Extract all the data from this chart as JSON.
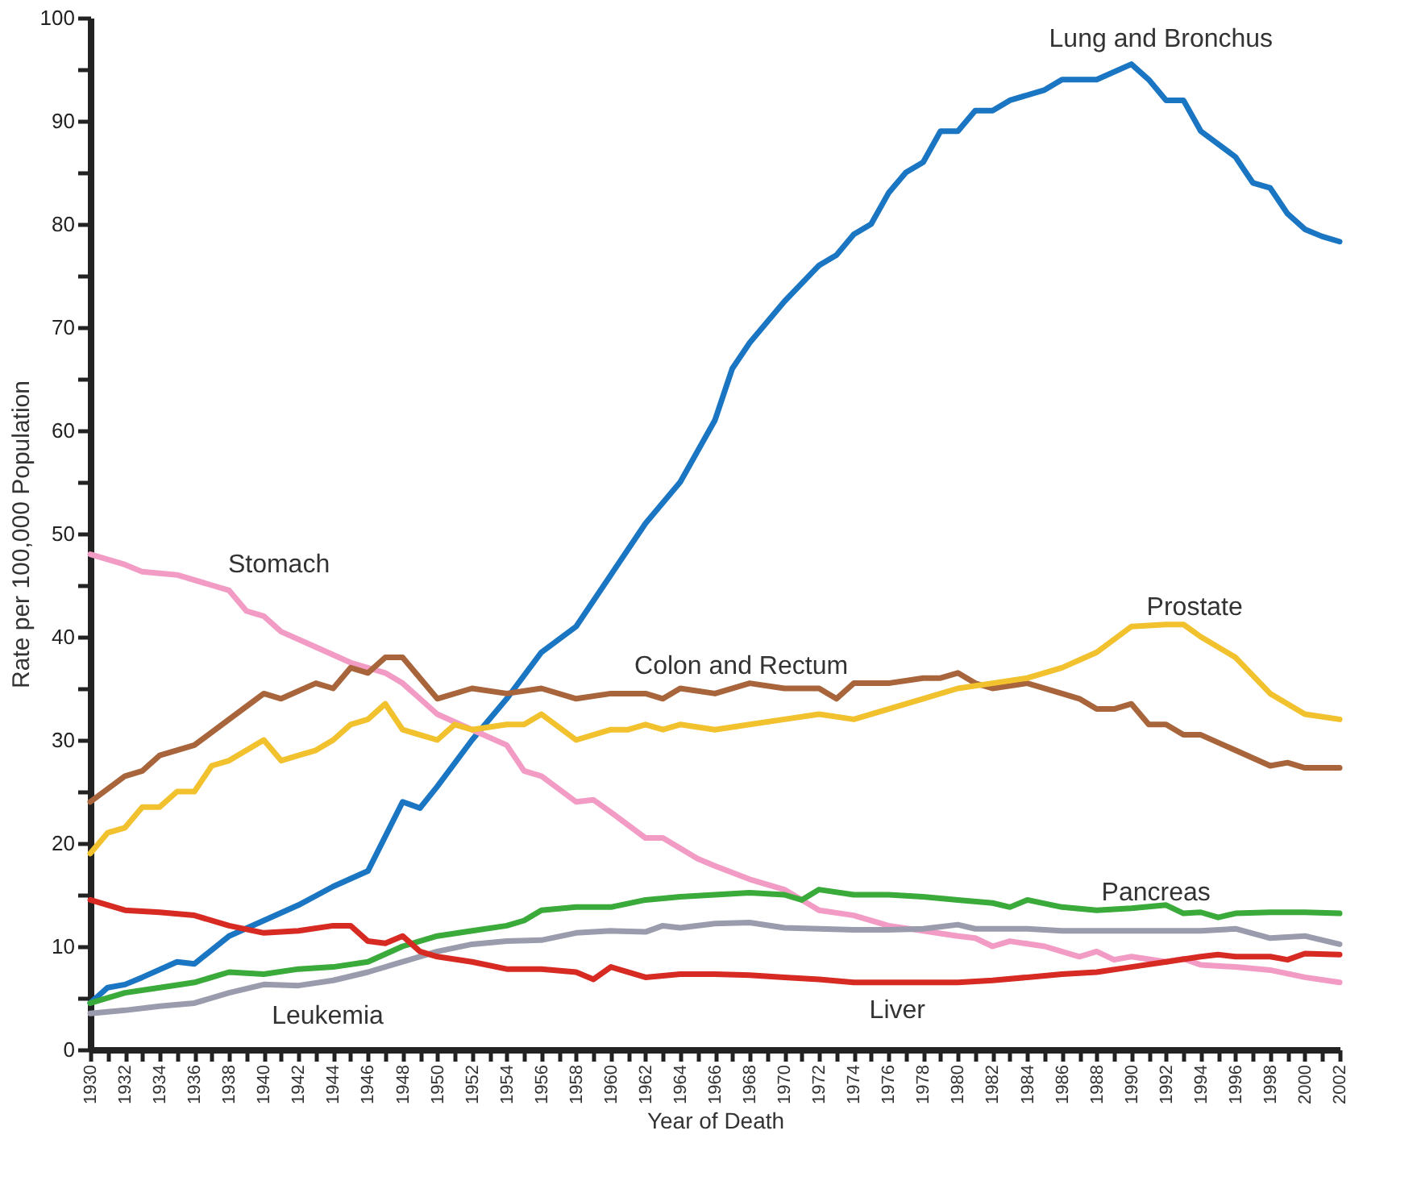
{
  "chart_data": {
    "type": "line",
    "xlabel": "Year of Death",
    "ylabel": "Rate per 100,000 Population",
    "xlim": [
      1930,
      2002
    ],
    "ylim": [
      0,
      100
    ],
    "xticks": [
      1930,
      {
        "value": 1931,
        "label": null
      },
      1932,
      {
        "value": 1933,
        "label": null
      },
      1934,
      {
        "value": 1935,
        "label": null
      },
      1936,
      {
        "value": 1937,
        "label": null
      },
      1938,
      {
        "value": 1939,
        "label": null
      },
      1940,
      {
        "value": 1941,
        "label": null
      },
      1942,
      {
        "value": 1943,
        "label": null
      },
      1944,
      {
        "value": 1945,
        "label": null
      },
      1946,
      {
        "value": 1947,
        "label": null
      },
      1948,
      {
        "value": 1949,
        "label": null
      },
      1950,
      {
        "value": 1951,
        "label": null
      },
      1952,
      {
        "value": 1953,
        "label": null
      },
      1954,
      {
        "value": 1955,
        "label": null
      },
      1956,
      {
        "value": 1957,
        "label": null
      },
      1958,
      {
        "value": 1959,
        "label": null
      },
      1960,
      {
        "value": 1961,
        "label": null
      },
      1962,
      {
        "value": 1963,
        "label": null
      },
      1964,
      {
        "value": 1965,
        "label": null
      },
      1966,
      {
        "value": 1967,
        "label": null
      },
      1968,
      {
        "value": 1969,
        "label": null
      },
      1970,
      {
        "value": 1971,
        "label": null
      },
      1972,
      {
        "value": 1973,
        "label": null
      },
      1974,
      {
        "value": 1975,
        "label": null
      },
      1976,
      {
        "value": 1977,
        "label": null
      },
      1978,
      {
        "value": 1979,
        "label": null
      },
      1980,
      {
        "value": 1981,
        "label": null
      },
      1982,
      {
        "value": 1983,
        "label": null
      },
      1984,
      {
        "value": 1985,
        "label": null
      },
      1986,
      {
        "value": 1987,
        "label": null
      },
      1988,
      {
        "value": 1989,
        "label": null
      },
      1990,
      {
        "value": 1991,
        "label": null
      },
      1992,
      {
        "value": 1993,
        "label": null
      },
      1994,
      {
        "value": 1995,
        "label": null
      },
      1996,
      {
        "value": 1997,
        "label": null
      },
      1998,
      {
        "value": 1999,
        "label": null
      },
      2000,
      {
        "value": 2001,
        "label": null
      },
      2002
    ],
    "yticks": [
      0,
      {
        "value": 5,
        "label": null
      },
      10,
      {
        "value": 15,
        "label": null
      },
      20,
      {
        "value": 25,
        "label": null
      },
      30,
      {
        "value": 35,
        "label": null
      },
      40,
      {
        "value": 45,
        "label": null
      },
      50,
      {
        "value": 55,
        "label": null
      },
      60,
      {
        "value": 65,
        "label": null
      },
      70,
      {
        "value": 75,
        "label": null
      },
      80,
      {
        "value": 85,
        "label": null
      },
      90,
      {
        "value": 95,
        "label": null
      },
      100
    ],
    "grid": false,
    "marker": "none",
    "line_style": "solid",
    "series": [
      {
        "name": "Lung and Bronchus",
        "color": "#1a75c2",
        "x": [
          1930,
          1931,
          1932,
          1933,
          1935,
          1936,
          1938,
          1940,
          1942,
          1944,
          1946,
          1948,
          1949,
          1950,
          1952,
          1954,
          1956,
          1958,
          1960,
          1962,
          1964,
          1966,
          1967,
          1968,
          1970,
          1972,
          1973,
          1974,
          1975,
          1976,
          1977,
          1978,
          1979,
          1980,
          1981,
          1982,
          1983,
          1985,
          1986,
          1987,
          1988,
          1990,
          1991,
          1992,
          1993,
          1994,
          1996,
          1997,
          1998,
          1999,
          2000,
          2001,
          2002
        ],
        "values": [
          4.5,
          6,
          6.3,
          7,
          8.5,
          8.3,
          11,
          12.5,
          14,
          15.8,
          17.3,
          24,
          23.4,
          25.5,
          30,
          34,
          38.5,
          41,
          46,
          51,
          55,
          61,
          66,
          68.5,
          72.5,
          76,
          77,
          79,
          80,
          83,
          85,
          86,
          89,
          89,
          91,
          91,
          92,
          93,
          94,
          94,
          94,
          95.5,
          94,
          92,
          92,
          89,
          86.5,
          84,
          83.5,
          81,
          79.5,
          78.8,
          78.3
        ]
      },
      {
        "name": "Stomach",
        "color": "#f29bc4",
        "x": [
          1930,
          1932,
          1933,
          1935,
          1937,
          1938,
          1939,
          1940,
          1941,
          1943,
          1945,
          1947,
          1948,
          1950,
          1952,
          1954,
          1955,
          1956,
          1958,
          1959,
          1960,
          1962,
          1963,
          1965,
          1966,
          1968,
          1970,
          1972,
          1974,
          1976,
          1978,
          1980,
          1981,
          1982,
          1983,
          1985,
          1987,
          1988,
          1989,
          1990,
          1992,
          1993,
          1994,
          1996,
          1998,
          2000,
          2002
        ],
        "values": [
          48,
          47,
          46.3,
          46,
          45,
          44.5,
          42.5,
          42,
          40.5,
          39,
          37.5,
          36.5,
          35.5,
          32.5,
          31,
          29.5,
          27,
          26.5,
          24,
          24.2,
          23,
          20.5,
          20.5,
          18.5,
          17.8,
          16.5,
          15.5,
          13.5,
          13,
          12,
          11.5,
          11,
          10.8,
          10,
          10.5,
          10,
          9,
          9.5,
          8.7,
          9,
          8.5,
          8.8,
          8.2,
          8,
          7.7,
          7,
          6.5
        ]
      },
      {
        "name": "Colon and Rectum",
        "color": "#a8643a",
        "x": [
          1930,
          1932,
          1933,
          1934,
          1936,
          1938,
          1940,
          1941,
          1943,
          1944,
          1945,
          1946,
          1947,
          1948,
          1950,
          1952,
          1954,
          1956,
          1958,
          1960,
          1962,
          1963,
          1964,
          1966,
          1968,
          1970,
          1972,
          1973,
          1974,
          1976,
          1978,
          1979,
          1980,
          1981,
          1982,
          1984,
          1986,
          1987,
          1988,
          1989,
          1990,
          1991,
          1992,
          1993,
          1994,
          1996,
          1998,
          1999,
          2000,
          2002
        ],
        "values": [
          24,
          26.5,
          27,
          28.5,
          29.5,
          32,
          34.5,
          34,
          35.5,
          35,
          37,
          36.5,
          38,
          38,
          34,
          35,
          34.5,
          35,
          34,
          34.5,
          34.5,
          34,
          35,
          34.5,
          35.5,
          35,
          35,
          34,
          35.5,
          35.5,
          36,
          36,
          36.5,
          35.5,
          35,
          35.5,
          34.5,
          34,
          33,
          33,
          33.5,
          31.5,
          31.5,
          30.5,
          30.5,
          29,
          27.5,
          27.8,
          27.3,
          27.3
        ]
      },
      {
        "name": "Prostate",
        "color": "#f2c12e",
        "x": [
          1930,
          1931,
          1932,
          1933,
          1934,
          1935,
          1936,
          1937,
          1938,
          1939,
          1940,
          1941,
          1942,
          1943,
          1944,
          1945,
          1946,
          1947,
          1948,
          1950,
          1951,
          1952,
          1954,
          1955,
          1956,
          1958,
          1960,
          1961,
          1962,
          1963,
          1964,
          1966,
          1968,
          1970,
          1972,
          1974,
          1976,
          1978,
          1980,
          1982,
          1984,
          1986,
          1988,
          1990,
          1992,
          1993,
          1994,
          1996,
          1998,
          2000,
          2002
        ],
        "values": [
          19,
          21,
          21.5,
          23.5,
          23.5,
          25,
          25,
          27.5,
          28,
          29,
          30,
          28,
          28.5,
          29,
          30,
          31.5,
          32,
          33.5,
          31,
          30,
          31.5,
          31,
          31.5,
          31.5,
          32.5,
          30,
          31,
          31,
          31.5,
          31,
          31.5,
          31,
          31.5,
          32,
          32.5,
          32,
          33,
          34,
          35,
          35.5,
          36,
          37,
          38.5,
          41,
          41.2,
          41.2,
          40,
          38,
          34.5,
          32.5,
          32
        ]
      },
      {
        "name": "Pancreas",
        "color": "#3aaa3a",
        "x": [
          1930,
          1932,
          1934,
          1936,
          1938,
          1940,
          1942,
          1944,
          1946,
          1948,
          1950,
          1952,
          1954,
          1955,
          1956,
          1958,
          1960,
          1962,
          1964,
          1966,
          1968,
          1970,
          1971,
          1972,
          1974,
          1976,
          1978,
          1980,
          1982,
          1983,
          1984,
          1986,
          1988,
          1990,
          1992,
          1993,
          1994,
          1995,
          1996,
          1998,
          2000,
          2002
        ],
        "values": [
          4.5,
          5.5,
          6,
          6.5,
          7.5,
          7.3,
          7.8,
          8,
          8.5,
          10,
          11,
          11.5,
          12,
          12.5,
          13.5,
          13.8,
          13.8,
          14.5,
          14.8,
          15,
          15.2,
          15,
          14.5,
          15.5,
          15,
          15,
          14.8,
          14.5,
          14.2,
          13.8,
          14.5,
          13.8,
          13.5,
          13.7,
          14,
          13.2,
          13.3,
          12.8,
          13.2,
          13.3,
          13.3,
          13.2
        ]
      },
      {
        "name": "Leukemia",
        "color": "#9a9cad",
        "x": [
          1930,
          1932,
          1934,
          1936,
          1938,
          1940,
          1942,
          1944,
          1946,
          1948,
          1950,
          1952,
          1954,
          1956,
          1958,
          1960,
          1962,
          1963,
          1964,
          1966,
          1968,
          1970,
          1972,
          1974,
          1976,
          1978,
          1980,
          1981,
          1982,
          1984,
          1986,
          1988,
          1990,
          1992,
          1994,
          1996,
          1998,
          2000,
          2002
        ],
        "values": [
          3.5,
          3.8,
          4.2,
          4.5,
          5.5,
          6.3,
          6.2,
          6.7,
          7.5,
          8.5,
          9.5,
          10.2,
          10.5,
          10.6,
          11.3,
          11.5,
          11.4,
          12,
          11.8,
          12.2,
          12.3,
          11.8,
          11.7,
          11.6,
          11.6,
          11.7,
          12.1,
          11.7,
          11.7,
          11.7,
          11.5,
          11.5,
          11.5,
          11.5,
          11.5,
          11.7,
          10.8,
          11,
          10.2
        ]
      },
      {
        "name": "Liver",
        "color": "#d62a22",
        "x": [
          1930,
          1932,
          1934,
          1936,
          1938,
          1940,
          1942,
          1944,
          1945,
          1946,
          1947,
          1948,
          1949,
          1950,
          1952,
          1954,
          1956,
          1958,
          1959,
          1960,
          1962,
          1964,
          1966,
          1968,
          1970,
          1972,
          1974,
          1976,
          1978,
          1980,
          1982,
          1984,
          1986,
          1988,
          1990,
          1992,
          1994,
          1995,
          1996,
          1998,
          1999,
          2000,
          2002
        ],
        "values": [
          14.5,
          13.5,
          13.3,
          13,
          12,
          11.3,
          11.5,
          12,
          12,
          10.5,
          10.3,
          11,
          9.5,
          9,
          8.5,
          7.8,
          7.8,
          7.5,
          6.8,
          8,
          7,
          7.3,
          7.3,
          7.2,
          7,
          6.8,
          6.5,
          6.5,
          6.5,
          6.5,
          6.7,
          7,
          7.3,
          7.5,
          8,
          8.5,
          9,
          9.2,
          9,
          9,
          8.7,
          9.3,
          9.2
        ]
      }
    ]
  }
}
